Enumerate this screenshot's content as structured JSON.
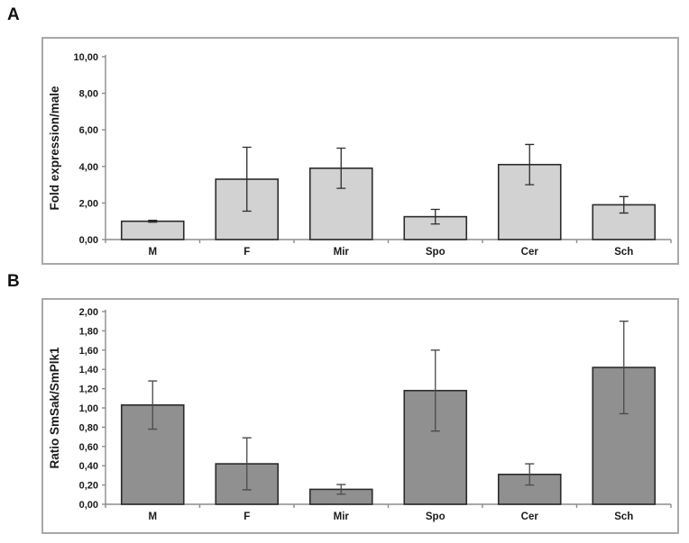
{
  "figure": {
    "background": "#ffffff",
    "box_border_color": "#a8a8a8",
    "panels": [
      {
        "label": "A"
      },
      {
        "label": "B"
      }
    ]
  },
  "chart_data": [
    {
      "type": "bar",
      "panel": "A",
      "title": "",
      "xlabel": "",
      "ylabel": "Fold expression/male",
      "categories": [
        "M",
        "F",
        "Mir",
        "Spo",
        "Cer",
        "Sch"
      ],
      "values": [
        1.0,
        3.3,
        3.9,
        1.25,
        4.1,
        1.9
      ],
      "errors": [
        0.05,
        1.75,
        1.1,
        0.4,
        1.1,
        0.45
      ],
      "ylim": [
        0,
        10
      ],
      "ytick_step": 2,
      "ytick_labels": [
        "0,00",
        "2,00",
        "4,00",
        "6,00",
        "8,00",
        "10,00"
      ],
      "grid": false,
      "legend": null,
      "bar_fill": "#d2d2d2",
      "bar_stroke": "#2b2b2b",
      "error_color": "#2b2b2b",
      "axis_color": "#8c8c8c"
    },
    {
      "type": "bar",
      "panel": "B",
      "title": "",
      "xlabel": "",
      "ylabel": "Ratio SmSak/SmPlk1",
      "categories": [
        "M",
        "F",
        "Mir",
        "Spo",
        "Cer",
        "Sch"
      ],
      "values": [
        1.03,
        0.42,
        0.155,
        1.18,
        0.31,
        1.42
      ],
      "errors": [
        0.25,
        0.27,
        0.05,
        0.42,
        0.11,
        0.48
      ],
      "ylim": [
        0,
        2
      ],
      "ytick_step": 0.2,
      "ytick_labels": [
        "0,00",
        "0,20",
        "0,40",
        "0,60",
        "0,80",
        "1,00",
        "1,20",
        "1,40",
        "1,60",
        "1,80",
        "2,00"
      ],
      "grid": false,
      "legend": null,
      "bar_fill": "#909090",
      "bar_stroke": "#2b2b2b",
      "error_color": "#4a4a4a",
      "axis_color": "#8c8c8c"
    }
  ]
}
